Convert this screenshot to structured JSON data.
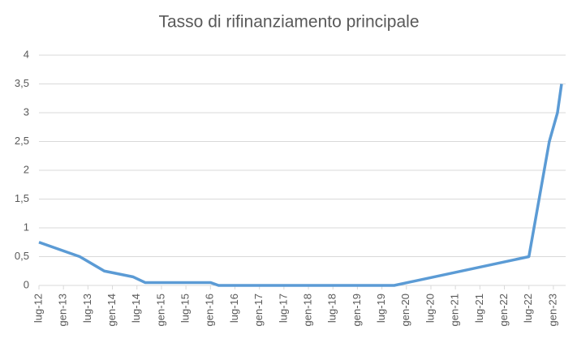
{
  "chart_data": {
    "type": "line",
    "title": "Tasso di rifinanziamento principale",
    "x": [
      0,
      10,
      16,
      23,
      26,
      42,
      44,
      87,
      120,
      125,
      127,
      128
    ],
    "series": [
      {
        "name": "Tasso di rifinanziamento principale",
        "color": "#5b9bd5",
        "values": [
          0.75,
          0.5,
          0.25,
          0.15,
          0.05,
          0.05,
          0,
          0,
          0.5,
          2.5,
          3,
          3.5
        ]
      }
    ],
    "xlim": [
      0,
      129
    ],
    "xticks": [
      {
        "value": 0,
        "label": "lug-12"
      },
      {
        "value": 6,
        "label": "gen-13"
      },
      {
        "value": 12,
        "label": "lug-13"
      },
      {
        "value": 18,
        "label": "gen-14"
      },
      {
        "value": 24,
        "label": "lug-14"
      },
      {
        "value": 30,
        "label": "gen-15"
      },
      {
        "value": 36,
        "label": "lug-15"
      },
      {
        "value": 42,
        "label": "gen-16"
      },
      {
        "value": 48,
        "label": "lug-16"
      },
      {
        "value": 54,
        "label": "gen-17"
      },
      {
        "value": 60,
        "label": "lug-17"
      },
      {
        "value": 66,
        "label": "gen-18"
      },
      {
        "value": 72,
        "label": "lug-18"
      },
      {
        "value": 78,
        "label": "gen-19"
      },
      {
        "value": 84,
        "label": "lug-19"
      },
      {
        "value": 90,
        "label": "gen-20"
      },
      {
        "value": 96,
        "label": "lug-20"
      },
      {
        "value": 102,
        "label": "gen-21"
      },
      {
        "value": 108,
        "label": "lug-21"
      },
      {
        "value": 114,
        "label": "gen-22"
      },
      {
        "value": 120,
        "label": "lug-22"
      },
      {
        "value": 126,
        "label": "gen-23"
      }
    ],
    "ylim": [
      0,
      4
    ],
    "yticks": [
      0,
      {
        "value": 0.5,
        "label": "0,5"
      },
      1,
      {
        "value": 1.5,
        "label": "1,5"
      },
      2,
      {
        "value": 2.5,
        "label": "2,5"
      },
      3,
      {
        "value": 3.5,
        "label": "3,5"
      },
      4
    ],
    "grid": true
  }
}
